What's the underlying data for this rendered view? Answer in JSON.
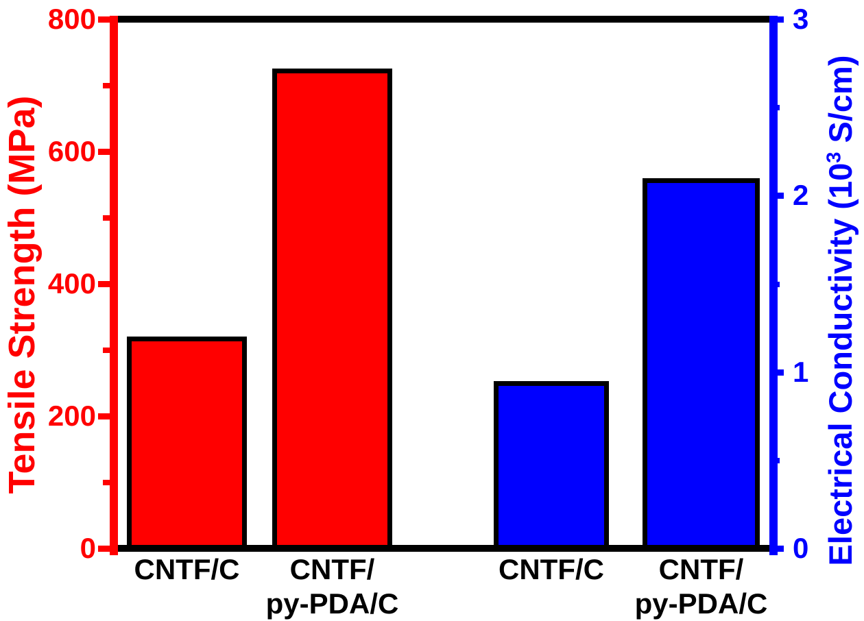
{
  "figure": {
    "background": "#ffffff",
    "frame_color": "#000000",
    "left_axis": {
      "title": "Tensile Strength (MPa)",
      "color": "#ff0000",
      "min": 0,
      "max": 800,
      "major_ticks": [
        {
          "value": 0,
          "label": "0"
        },
        {
          "value": 200,
          "label": "200"
        },
        {
          "value": 400,
          "label": "400"
        },
        {
          "value": 600,
          "label": "600"
        },
        {
          "value": 800,
          "label": "800"
        }
      ],
      "minor_ticks": [
        100,
        300,
        500,
        700
      ]
    },
    "right_axis": {
      "title_prefix": "Electrical Conductivity (10",
      "title_sup": "3",
      "title_suffix": " S/cm)",
      "color": "#0000ff",
      "min": 0,
      "max": 3,
      "major_ticks": [
        {
          "value": 0,
          "label": "0"
        },
        {
          "value": 1,
          "label": "1"
        },
        {
          "value": 2,
          "label": "2"
        },
        {
          "value": 3,
          "label": "3"
        }
      ],
      "minor_ticks": [
        0.5,
        1.5,
        2.5
      ]
    }
  },
  "chart_data": {
    "type": "bar",
    "title": "",
    "xlabel": "",
    "ylabel_left": "Tensile Strength (MPa)",
    "ylabel_right": "Electrical Conductivity (10^3 S/cm)",
    "ylim_left": [
      0,
      800
    ],
    "ylim_right": [
      0,
      3
    ],
    "grid": false,
    "legend": "none",
    "categories_lines": [
      [
        "CNTF/C"
      ],
      [
        "CNTF/",
        "py-PDA/C"
      ]
    ],
    "series": [
      {
        "name": "Tensile Strength",
        "axis": "left",
        "unit": "MPa",
        "color": "#ff0000",
        "border_color": "#000000",
        "values": [
          320,
          725
        ]
      },
      {
        "name": "Electrical Conductivity",
        "axis": "right",
        "unit": "10^3 S/cm",
        "color": "#0000ff",
        "border_color": "#000000",
        "values": [
          0.95,
          2.1
        ]
      }
    ]
  }
}
